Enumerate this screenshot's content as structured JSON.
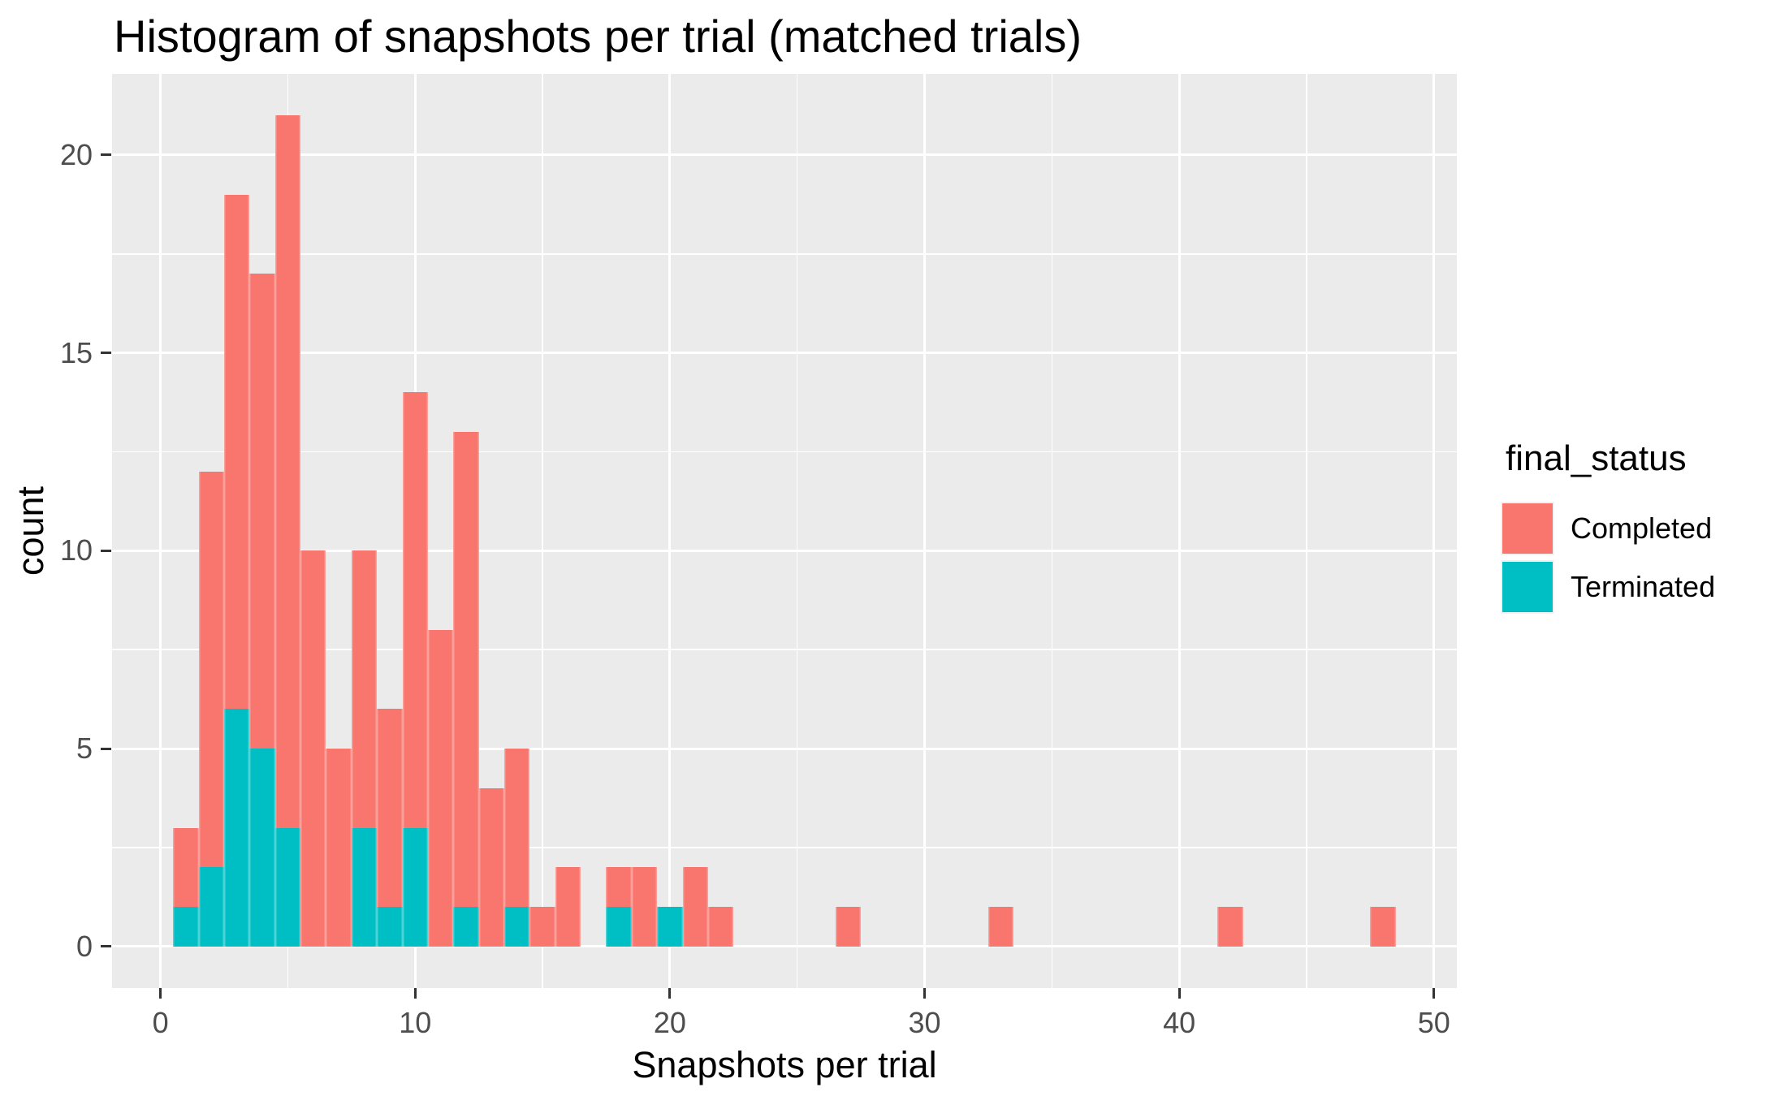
{
  "figure": {
    "title": "Histogram of snapshots per trial (matched trials)"
  },
  "colors": {
    "completed": "#F8766D",
    "terminated": "#00BFC4",
    "panel_background": "#EBEBEB",
    "gridline": "#FFFFFF",
    "tick_mark": "#333333",
    "axis_text": "#4D4D4D",
    "title_text": "#000000"
  },
  "legend": {
    "title": "final_status",
    "entries": [
      {
        "label": "Completed",
        "color": "#F8766D"
      },
      {
        "label": "Terminated",
        "color": "#00BFC4"
      }
    ]
  },
  "chart_data": {
    "type": "bar",
    "subtype": "stacked_histogram",
    "title": "Histogram of snapshots per trial (matched trials)",
    "xlabel": "Snapshots per trial",
    "ylabel": "count",
    "bin_width": 1,
    "categories": [
      1,
      2,
      3,
      4,
      5,
      6,
      7,
      8,
      9,
      10,
      11,
      12,
      13,
      14,
      15,
      16,
      17,
      18,
      19,
      20,
      21,
      22,
      27,
      33,
      42,
      48
    ],
    "series": [
      {
        "name": "Completed",
        "color": "#F8766D",
        "values": [
          2,
          10,
          13,
          12,
          18,
          10,
          5,
          7,
          5,
          11,
          8,
          12,
          4,
          4,
          1,
          2,
          0,
          1,
          2,
          0,
          2,
          1,
          1,
          1,
          1,
          1
        ]
      },
      {
        "name": "Terminated",
        "color": "#00BFC4",
        "values": [
          1,
          2,
          6,
          5,
          3,
          0,
          0,
          3,
          1,
          3,
          0,
          1,
          0,
          1,
          0,
          0,
          0,
          1,
          0,
          1,
          0,
          0,
          0,
          0,
          0,
          0
        ]
      }
    ],
    "stack_order_bottom_to_top": [
      "Terminated",
      "Completed"
    ],
    "totals_per_bin": [
      3,
      12,
      19,
      17,
      21,
      10,
      5,
      10,
      6,
      14,
      8,
      13,
      4,
      5,
      1,
      2,
      0,
      2,
      2,
      1,
      2,
      1,
      1,
      1,
      1,
      1
    ],
    "xlim": [
      -1.9,
      50.9
    ],
    "ylim": [
      -1.05,
      22.05
    ],
    "x_ticks": [
      0,
      10,
      20,
      30,
      40,
      50
    ],
    "y_ticks": [
      0,
      5,
      10,
      15,
      20
    ],
    "x_minor_gridlines": [
      5,
      15,
      25,
      35,
      45
    ],
    "y_minor_gridlines": [
      2.5,
      7.5,
      12.5,
      17.5
    ],
    "grid": true,
    "legend_position": "right",
    "panel_background": "#EBEBEB"
  }
}
